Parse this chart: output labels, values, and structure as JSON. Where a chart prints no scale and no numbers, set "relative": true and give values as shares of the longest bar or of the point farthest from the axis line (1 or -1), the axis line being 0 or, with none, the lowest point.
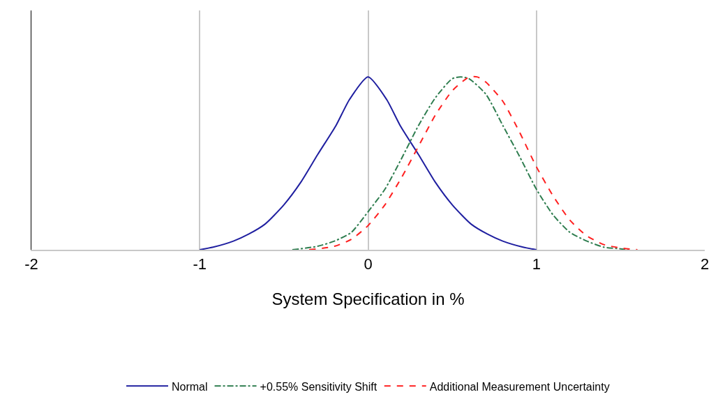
{
  "chart_data": {
    "type": "line",
    "xlabel": "System Specification in %",
    "relative": true,
    "xlim": [
      -2,
      2
    ],
    "xticks": [
      -2,
      -1,
      0,
      1,
      2
    ],
    "grid": "x",
    "legend": "bottom",
    "series": [
      {
        "name": "Normal",
        "color": "#1f1fa0",
        "line_style": "solid",
        "x": [
          -1,
          -0.92,
          -0.8,
          -0.71,
          -0.61,
          -0.5,
          -0.4,
          -0.3,
          -0.19,
          -0.11,
          0,
          0.11,
          0.19,
          0.3,
          0.4,
          0.5,
          0.61,
          0.71,
          0.8,
          0.92,
          1
        ],
        "values": [
          0,
          0.015,
          0.05,
          0.09,
          0.15,
          0.26,
          0.39,
          0.55,
          0.72,
          0.87,
          1,
          0.87,
          0.72,
          0.55,
          0.39,
          0.26,
          0.15,
          0.09,
          0.05,
          0.015,
          0
        ]
      },
      {
        "name": "+0.55% Sensitivity Shift",
        "color": "#2e7d4f",
        "line_style": "dashdot",
        "x": [
          -0.45,
          -0.3,
          -0.2,
          -0.1,
          0,
          0.1,
          0.2,
          0.3,
          0.4,
          0.5,
          0.55,
          0.6,
          0.7,
          0.8,
          0.9,
          1.0,
          1.1,
          1.2,
          1.3,
          1.4,
          1.5,
          1.55
        ],
        "values": [
          0,
          0.02,
          0.05,
          0.1,
          0.22,
          0.35,
          0.53,
          0.72,
          0.88,
          0.99,
          1,
          0.99,
          0.9,
          0.72,
          0.54,
          0.35,
          0.2,
          0.1,
          0.05,
          0.015,
          0.005,
          0
        ]
      },
      {
        "name": "Additional Measurement Uncertainty",
        "color": "#ff2020",
        "line_style": "dashed",
        "x": [
          -0.35,
          -0.2,
          -0.1,
          0,
          0.1,
          0.2,
          0.3,
          0.4,
          0.5,
          0.6,
          0.65,
          0.7,
          0.8,
          0.9,
          1.0,
          1.1,
          1.2,
          1.3,
          1.4,
          1.5,
          1.6
        ],
        "values": [
          0,
          0.02,
          0.06,
          0.14,
          0.26,
          0.42,
          0.6,
          0.78,
          0.92,
          1,
          1,
          0.97,
          0.86,
          0.68,
          0.48,
          0.31,
          0.17,
          0.08,
          0.03,
          0.01,
          0
        ]
      }
    ]
  }
}
